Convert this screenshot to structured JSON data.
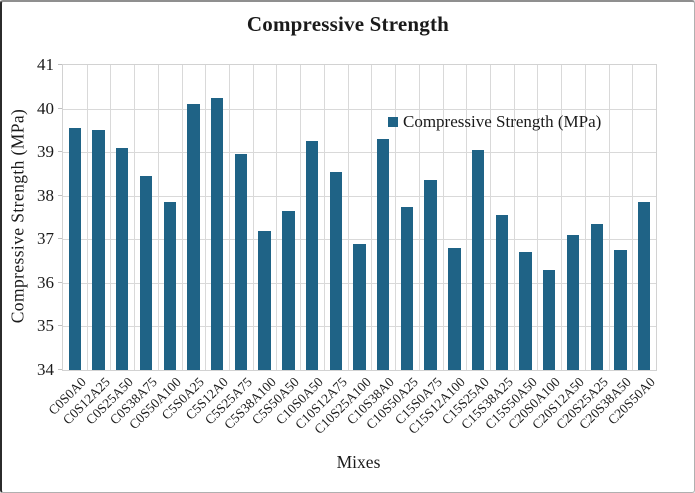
{
  "chart_data": {
    "type": "bar",
    "title": "Compressive Strength",
    "xlabel": "Mixes",
    "ylabel": "Compressive Strength (MPa)",
    "legend_label": "Compressive Strength (MPa)",
    "legend_position": "inside-upper-right",
    "grid": true,
    "bar_color": "#1F6386",
    "gridline_color": "#d9d9d9",
    "text_color": "#1a1a1a",
    "ylim": [
      34,
      41
    ],
    "ytick_step": 1,
    "yticks_top_to_bottom": [
      41,
      40,
      39,
      38,
      37,
      36,
      35,
      34
    ],
    "categories": [
      "C0S0A0",
      "C0S12A25",
      "C0S25A50",
      "C0S38A75",
      "C0S50A100",
      "C5S0A25",
      "C5S12A0",
      "C5S25A75",
      "C5S38A100",
      "C5S50A50",
      "C10S0A50",
      "C10S12A75",
      "C10S25A100",
      "C10S38A0",
      "C10S50A25",
      "C15S0A75",
      "C15S12A100",
      "C15S25A0",
      "C15S38A25",
      "C15S50A50",
      "C20S0A100",
      "C20S12A50",
      "C20S25A25",
      "C20S38A50",
      "C20S50A0"
    ],
    "values": [
      39.55,
      39.5,
      39.1,
      38.45,
      37.85,
      40.1,
      40.25,
      38.95,
      37.2,
      37.65,
      39.25,
      38.55,
      36.9,
      39.3,
      37.75,
      38.35,
      36.8,
      39.05,
      37.55,
      36.7,
      36.3,
      37.1,
      37.35,
      36.75,
      37.85
    ]
  }
}
